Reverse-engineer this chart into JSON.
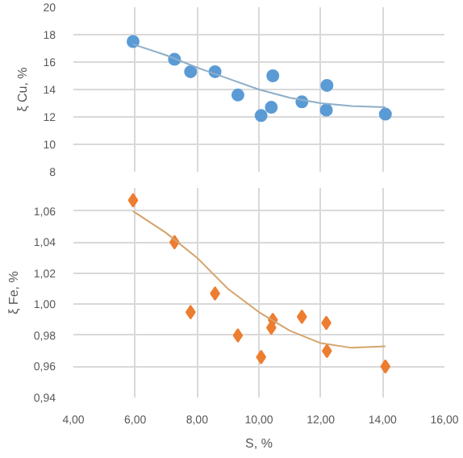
{
  "chart_data": [
    {
      "type": "scatter",
      "ylabel": "ξ Cu, %",
      "xlim": [
        4,
        16
      ],
      "xticks": [
        4,
        6,
        8,
        10,
        12,
        14,
        16
      ],
      "ylim": [
        8,
        20
      ],
      "yticks": [
        8,
        10,
        12,
        14,
        16,
        18,
        20
      ],
      "grid": true,
      "tick_labels": "y",
      "series": [
        {
          "marker": "circle",
          "color": "#5b9bd5",
          "x": [
            5.93,
            7.27,
            7.79,
            8.58,
            9.32,
            10.07,
            10.4,
            10.45,
            11.39,
            12.18,
            12.2,
            14.09
          ],
          "values": [
            17.5,
            16.2,
            15.3,
            15.3,
            13.6,
            12.1,
            12.7,
            15.0,
            13.1,
            12.5,
            14.3,
            12.2
          ]
        },
        {
          "type": "line",
          "color": "#8eaec9",
          "x": [
            5.93,
            7,
            8,
            9,
            10,
            11,
            12,
            13,
            14.09
          ],
          "values": [
            17.3,
            16.5,
            15.6,
            14.8,
            14.0,
            13.4,
            13.0,
            12.8,
            12.7
          ]
        }
      ]
    },
    {
      "type": "scatter",
      "ylabel": "ξ Fe, %",
      "xlabel": "S, %",
      "xlim": [
        4,
        16
      ],
      "xticks": [
        {
          "value": 4,
          "label": "4,00"
        },
        {
          "value": 6,
          "label": "6,00"
        },
        {
          "value": 8,
          "label": "8,00"
        },
        {
          "value": 10,
          "label": "10,00"
        },
        {
          "value": 12,
          "label": "12,00"
        },
        {
          "value": 14,
          "label": "14,00"
        },
        {
          "value": 16,
          "label": "16,00"
        }
      ],
      "ylim": [
        0.94,
        1.075
      ],
      "yticks": [
        {
          "value": 0.94,
          "label": "0,94"
        },
        {
          "value": 0.96,
          "label": "0,96"
        },
        {
          "value": 0.98,
          "label": "0,98"
        },
        {
          "value": 1.0,
          "label": "1,00"
        },
        {
          "value": 1.02,
          "label": "1,02"
        },
        {
          "value": 1.04,
          "label": "1,04"
        },
        {
          "value": 1.06,
          "label": "1,06"
        }
      ],
      "grid": true,
      "series": [
        {
          "marker": "diamond",
          "color": "#ed7d31",
          "x": [
            5.93,
            7.27,
            7.79,
            8.58,
            9.32,
            10.07,
            10.4,
            10.45,
            11.39,
            12.18,
            12.2,
            14.09
          ],
          "values": [
            1.067,
            1.04,
            0.995,
            1.007,
            0.98,
            0.966,
            0.985,
            0.99,
            0.992,
            0.988,
            0.97,
            0.96
          ]
        },
        {
          "type": "line",
          "color": "#d4a46c",
          "x": [
            5.93,
            7,
            8,
            9,
            10,
            11,
            12,
            13,
            14.09
          ],
          "values": [
            1.06,
            1.046,
            1.03,
            1.01,
            0.995,
            0.983,
            0.975,
            0.972,
            0.973
          ]
        }
      ]
    }
  ]
}
